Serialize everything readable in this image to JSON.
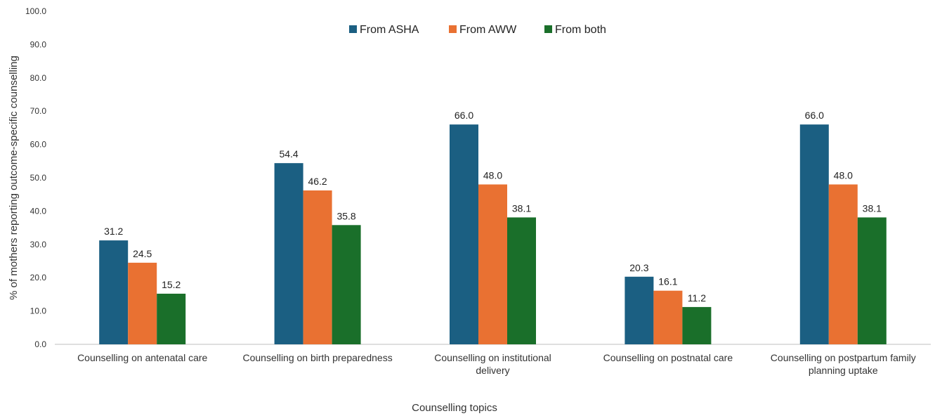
{
  "chart_data": {
    "type": "bar",
    "xlabel": "Counselling topics",
    "ylabel": "% of mothers reporting outcome-specific counselling",
    "ylim": [
      0,
      100
    ],
    "yticks": [
      "0.0",
      "10.0",
      "20.0",
      "30.0",
      "40.0",
      "50.0",
      "60.0",
      "70.0",
      "80.0",
      "90.0",
      "100.0"
    ],
    "legend_position": "top-center",
    "grid": false,
    "categories": [
      [
        "Counselling on antenatal care"
      ],
      [
        "Counselling on birth preparedness"
      ],
      [
        "Counselling on institutional",
        "delivery"
      ],
      [
        "Counselling on postnatal care"
      ],
      [
        "Counselling on postpartum family",
        "planning uptake"
      ]
    ],
    "series": [
      {
        "name": "From ASHA",
        "color": "#1b5f82",
        "values": [
          31.2,
          54.4,
          66.0,
          20.3,
          66.0
        ],
        "labels": [
          "31.2",
          "54.4",
          "66.0",
          "20.3",
          "66.0"
        ]
      },
      {
        "name": "From AWW",
        "color": "#e97132",
        "values": [
          24.5,
          46.2,
          48.0,
          16.1,
          48.0
        ],
        "labels": [
          "24.5",
          "46.2",
          "48.0",
          "16.1",
          "48.0"
        ]
      },
      {
        "name": "From both",
        "color": "#1a6f2a",
        "values": [
          15.2,
          35.8,
          38.1,
          11.2,
          38.1
        ],
        "labels": [
          "15.2",
          "35.8",
          "38.1",
          "11.2",
          "38.1"
        ]
      }
    ]
  }
}
